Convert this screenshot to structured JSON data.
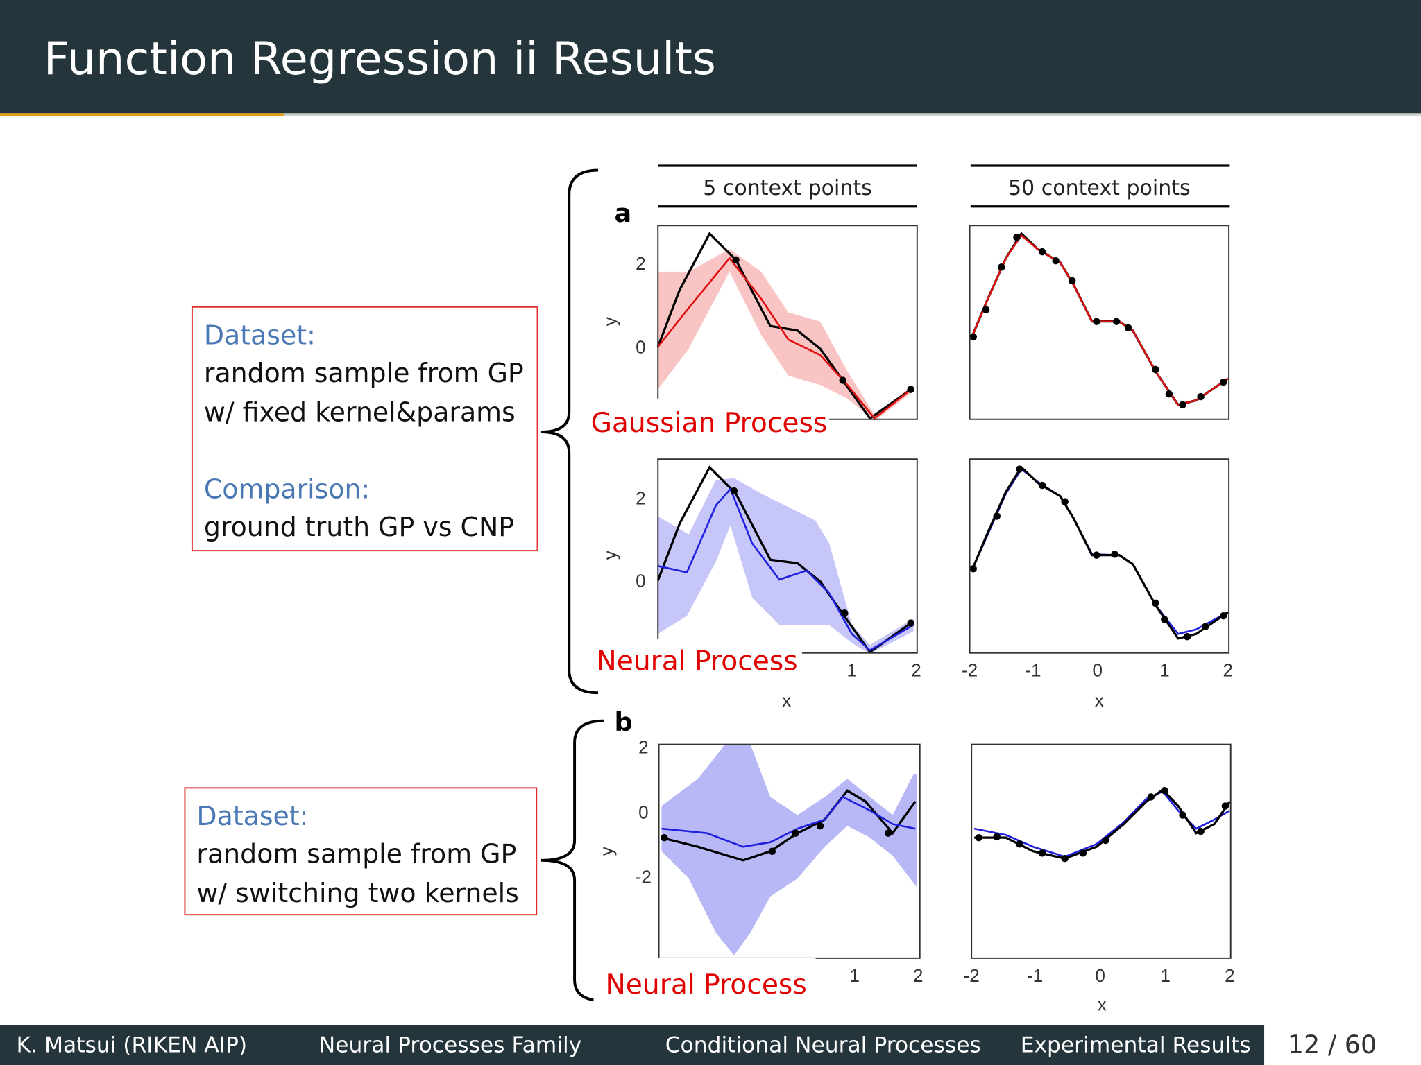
{
  "header": {
    "title": "Function Regression ii Results"
  },
  "boxes": [
    {
      "lines": [
        {
          "text": "Dataset:",
          "kind": "heading"
        },
        {
          "text": "random sample from GP",
          "kind": "body"
        },
        {
          "text": "w/ fixed kernel&params",
          "kind": "body"
        },
        {
          "text": "Comparison:",
          "kind": "heading"
        },
        {
          "text": "ground truth GP vs CNP",
          "kind": "body"
        }
      ]
    },
    {
      "lines": [
        {
          "text": "Dataset:",
          "kind": "heading"
        },
        {
          "text": "random sample from GP",
          "kind": "body"
        },
        {
          "text": "w/ switching two kernels",
          "kind": "body"
        }
      ]
    }
  ],
  "figure": {
    "panel_a": "a",
    "panel_b": "b",
    "column_titles": [
      "5 context points",
      "50 context points"
    ],
    "y_axis_label": "y",
    "x_axis_label": "x",
    "a_y_ticks": [
      "2",
      "0"
    ],
    "b_y_ticks": [
      "2",
      "0",
      "-2"
    ],
    "left_x_ticks": [
      "1",
      "2"
    ],
    "right_x_ticks": [
      "-2",
      "-1",
      "0",
      "1",
      "2"
    ],
    "method_labels": [
      "Gaussian Process",
      "Neural Process",
      "Neural Process"
    ]
  },
  "footer": {
    "items": [
      "K. Matsui (RIKEN AIP)",
      "Neural Processes Family",
      "Conditional Neural Processes",
      "Experimental Results"
    ],
    "page": "12 / 60"
  }
}
